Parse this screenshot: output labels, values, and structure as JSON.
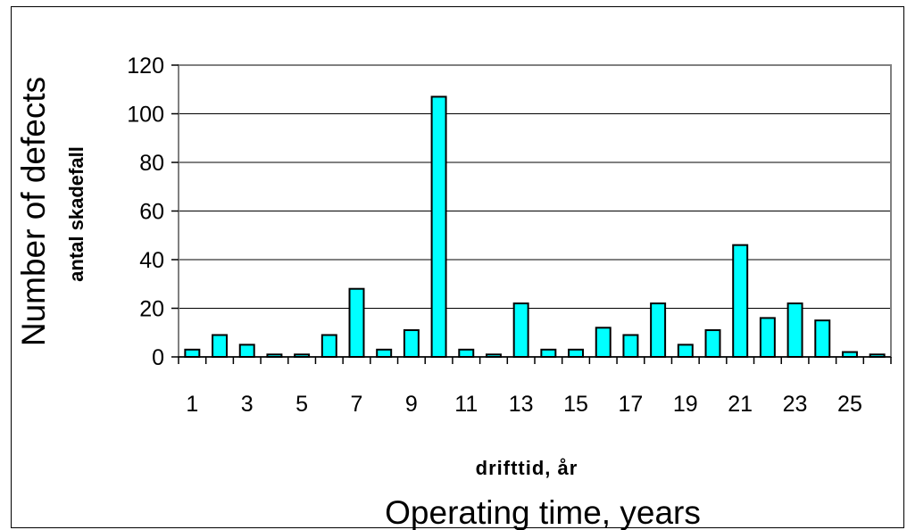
{
  "chart_data": {
    "type": "bar",
    "categories": [
      "1",
      "2",
      "3",
      "4",
      "5",
      "6",
      "7",
      "8",
      "9",
      "10",
      "11",
      "12",
      "13",
      "14",
      "15",
      "16",
      "17",
      "18",
      "19",
      "20",
      "21",
      "22",
      "23",
      "24",
      "25",
      "26"
    ],
    "x_tick_labels": [
      "1",
      "3",
      "5",
      "7",
      "9",
      "11",
      "13",
      "15",
      "17",
      "19",
      "21",
      "23",
      "25"
    ],
    "values": [
      3,
      9,
      5,
      1,
      1,
      9,
      28,
      3,
      11,
      107,
      3,
      1,
      22,
      3,
      3,
      12,
      9,
      22,
      5,
      11,
      46,
      16,
      22,
      15,
      2,
      1
    ],
    "ylim": [
      0,
      120
    ],
    "y_ticks": [
      0,
      20,
      40,
      60,
      80,
      100,
      120
    ],
    "ylabel": "Number of defects",
    "ylabel_secondary": "antal skadefall",
    "xlabel": "Operating time, years",
    "xlabel_secondary": "drifttid, år",
    "grid": true,
    "colors": {
      "bar_fill": "#00FFFF",
      "bar_stroke": "#000000",
      "plot_border": "#808080",
      "gridline": "#000000"
    }
  }
}
